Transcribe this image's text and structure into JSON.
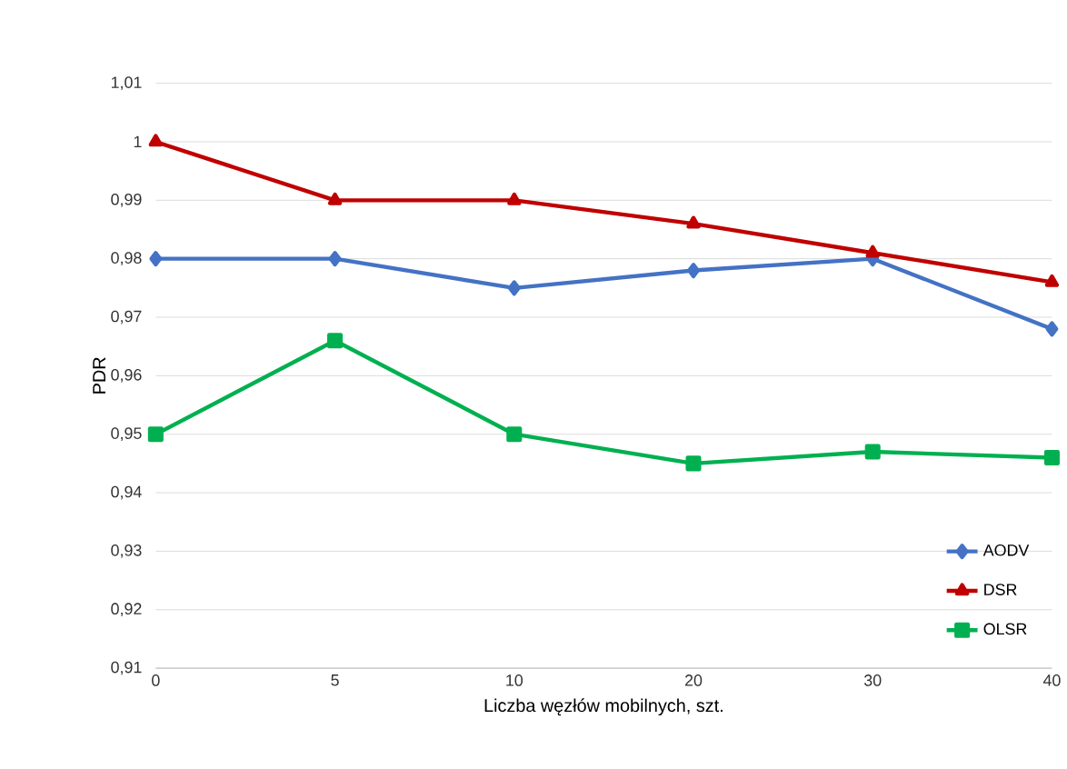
{
  "chart_data": {
    "type": "line",
    "xlabel": "Liczba węzłów mobilnych, szt.",
    "ylabel": "PDR",
    "categories": [
      "0",
      "5",
      "10",
      "20",
      "30",
      "40"
    ],
    "series": [
      {
        "name": "AODV",
        "color": "#4472c4",
        "marker": "diamond",
        "values": [
          0.98,
          0.98,
          0.975,
          0.978,
          0.98,
          0.968
        ]
      },
      {
        "name": "DSR",
        "color": "#c00000",
        "marker": "triangle",
        "values": [
          1.0,
          0.99,
          0.99,
          0.986,
          0.981,
          0.976
        ]
      },
      {
        "name": "OLSR",
        "color": "#00b050",
        "marker": "square",
        "values": [
          0.95,
          0.966,
          0.95,
          0.945,
          0.947,
          0.946
        ]
      }
    ],
    "ylim": [
      0.91,
      1.01
    ],
    "yticks": [
      {
        "value": 0.91,
        "label": "0,91"
      },
      {
        "value": 0.92,
        "label": "0,92"
      },
      {
        "value": 0.93,
        "label": "0,93"
      },
      {
        "value": 0.94,
        "label": "0,94"
      },
      {
        "value": 0.95,
        "label": "0,95"
      },
      {
        "value": 0.96,
        "label": "0,96"
      },
      {
        "value": 0.97,
        "label": "0,97"
      },
      {
        "value": 0.98,
        "label": "0,98"
      },
      {
        "value": 0.99,
        "label": "0,99"
      },
      1,
      {
        "value": 1.01,
        "label": "1,01"
      }
    ],
    "grid": "y",
    "legend": "bottom right"
  }
}
